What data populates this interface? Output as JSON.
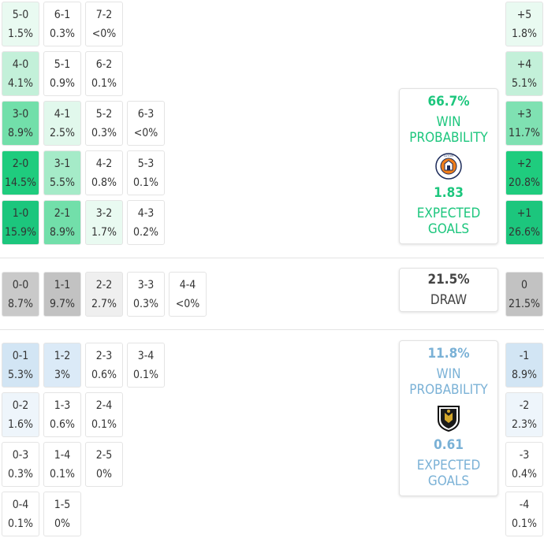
{
  "home": {
    "win_probability": "66.7%",
    "win_label_line1": "WIN",
    "win_label_line2": "PROBABILITY",
    "expected_goals": "1.83",
    "xg_label_line1": "EXPECTED",
    "xg_label_line2": "GOALS",
    "crest_icon": "luton-town-crest-icon",
    "accent": "#1cc67d"
  },
  "away": {
    "win_probability": "11.8%",
    "win_label_line1": "WIN",
    "win_label_line2": "PROBABILITY",
    "expected_goals": "0.61",
    "xg_label_line1": "EXPECTED",
    "xg_label_line2": "GOALS",
    "crest_icon": "afc-wimbledon-crest-icon",
    "accent": "#7ab1d6"
  },
  "draw": {
    "probability": "21.5%",
    "label": "DRAW"
  },
  "home_scores": [
    {
      "score": "5-0",
      "pct": "1.5%",
      "bg": "#e9faf1"
    },
    {
      "score": "6-1",
      "pct": "0.3%",
      "bg": "#ffffff"
    },
    {
      "score": "7-2",
      "pct": "<0%",
      "bg": "#ffffff"
    },
    {
      "score": "4-0",
      "pct": "4.1%",
      "bg": "#c3f0d9"
    },
    {
      "score": "5-1",
      "pct": "0.9%",
      "bg": "#ffffff"
    },
    {
      "score": "6-2",
      "pct": "0.1%",
      "bg": "#ffffff"
    },
    {
      "score": "3-0",
      "pct": "8.9%",
      "bg": "#72dfaa"
    },
    {
      "score": "4-1",
      "pct": "2.5%",
      "bg": "#e1f8ec"
    },
    {
      "score": "5-2",
      "pct": "0.3%",
      "bg": "#ffffff"
    },
    {
      "score": "6-3",
      "pct": "<0%",
      "bg": "#ffffff"
    },
    {
      "score": "2-0",
      "pct": "14.5%",
      "bg": "#1fcc7e"
    },
    {
      "score": "3-1",
      "pct": "5.5%",
      "bg": "#a5ebc8"
    },
    {
      "score": "4-2",
      "pct": "0.8%",
      "bg": "#ffffff"
    },
    {
      "score": "5-3",
      "pct": "0.1%",
      "bg": "#ffffff"
    },
    {
      "score": "1-0",
      "pct": "15.9%",
      "bg": "#1cc67d"
    },
    {
      "score": "2-1",
      "pct": "8.9%",
      "bg": "#72dfaa"
    },
    {
      "score": "3-2",
      "pct": "1.7%",
      "bg": "#e9faf1"
    },
    {
      "score": "4-3",
      "pct": "0.2%",
      "bg": "#ffffff"
    }
  ],
  "draw_scores": [
    {
      "score": "0-0",
      "pct": "8.7%",
      "bg": "#c9c9c9"
    },
    {
      "score": "1-1",
      "pct": "9.7%",
      "bg": "#c2c2c2"
    },
    {
      "score": "2-2",
      "pct": "2.7%",
      "bg": "#efefef"
    },
    {
      "score": "3-3",
      "pct": "0.3%",
      "bg": "#ffffff"
    },
    {
      "score": "4-4",
      "pct": "<0%",
      "bg": "#ffffff"
    }
  ],
  "away_scores": [
    {
      "score": "0-1",
      "pct": "5.3%",
      "bg": "#d2e5f4"
    },
    {
      "score": "1-2",
      "pct": "3%",
      "bg": "#dbeaf7"
    },
    {
      "score": "2-3",
      "pct": "0.6%",
      "bg": "#ffffff"
    },
    {
      "score": "3-4",
      "pct": "0.1%",
      "bg": "#ffffff"
    },
    {
      "score": "0-2",
      "pct": "1.6%",
      "bg": "#eef5fb"
    },
    {
      "score": "1-3",
      "pct": "0.6%",
      "bg": "#ffffff"
    },
    {
      "score": "2-4",
      "pct": "0.1%",
      "bg": "#ffffff"
    },
    {
      "score": "0-3",
      "pct": "0.3%",
      "bg": "#ffffff"
    },
    {
      "score": "1-4",
      "pct": "0.1%",
      "bg": "#ffffff"
    },
    {
      "score": "2-5",
      "pct": "0%",
      "bg": "#ffffff"
    },
    {
      "score": "0-4",
      "pct": "0.1%",
      "bg": "#ffffff"
    },
    {
      "score": "1-5",
      "pct": "0%",
      "bg": "#ffffff"
    }
  ],
  "margins_home": [
    {
      "margin": "+5",
      "pct": "1.8%",
      "bg": "#e9faf1"
    },
    {
      "margin": "+4",
      "pct": "5.1%",
      "bg": "#c3f0d9"
    },
    {
      "margin": "+3",
      "pct": "11.7%",
      "bg": "#7fe1b2"
    },
    {
      "margin": "+2",
      "pct": "20.8%",
      "bg": "#1fcc7e"
    },
    {
      "margin": "+1",
      "pct": "26.6%",
      "bg": "#1cc67d"
    }
  ],
  "margin_draw": {
    "margin": "0",
    "pct": "21.5%",
    "bg": "#c2c2c2"
  },
  "margins_away": [
    {
      "margin": "-1",
      "pct": "8.9%",
      "bg": "#d2e5f4"
    },
    {
      "margin": "-2",
      "pct": "2.3%",
      "bg": "#eef5fb"
    },
    {
      "margin": "-3",
      "pct": "0.4%",
      "bg": "#ffffff"
    },
    {
      "margin": "-4",
      "pct": "0.1%",
      "bg": "#ffffff"
    }
  ]
}
